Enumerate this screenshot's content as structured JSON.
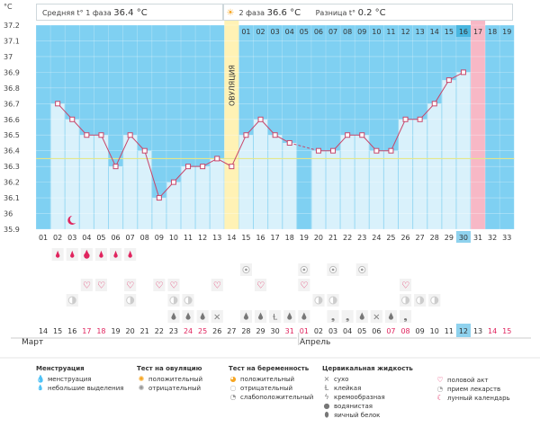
{
  "summary": {
    "phase1_label": "Средняя t° 1 фаза",
    "phase1_value": "36.4 °C",
    "phase2_label": "2 фаза",
    "phase2_value": "36.6 °C",
    "diff_label": "Разница t°",
    "diff_value": "0.2 °C"
  },
  "chart_data": {
    "type": "line",
    "title": "",
    "y_unit": "°C",
    "ylim": [
      35.9,
      37.2
    ],
    "yticks": [
      "35.9",
      "36",
      "36.1",
      "36.2",
      "36.3",
      "36.4",
      "36.5",
      "36.6",
      "36.7",
      "36.8",
      "36.9",
      "37",
      "37.1",
      "37.2"
    ],
    "cycle_days": [
      "01",
      "02",
      "03",
      "04",
      "05",
      "06",
      "07",
      "08",
      "09",
      "10",
      "11",
      "12",
      "13",
      "14",
      "15",
      "16",
      "17",
      "18",
      "19",
      "20",
      "21",
      "22",
      "23",
      "24",
      "25",
      "26",
      "27",
      "28",
      "29",
      "30",
      "31",
      "32",
      "33"
    ],
    "top_days": [
      "01",
      "02",
      "03",
      "04",
      "05",
      "06",
      "07",
      "08",
      "09",
      "10",
      "11",
      "12",
      "13",
      "14",
      "15",
      "16",
      "17",
      "18",
      "19"
    ],
    "dates": [
      "14",
      "15",
      "16",
      "17",
      "18",
      "19",
      "20",
      "21",
      "22",
      "23",
      "24",
      "25",
      "26",
      "27",
      "28",
      "29",
      "30",
      "31",
      "01",
      "02",
      "03",
      "04",
      "05",
      "06",
      "07",
      "08",
      "09",
      "10",
      "11",
      "12",
      "13",
      "14",
      "15"
    ],
    "weekend_dates": [
      3,
      4,
      10,
      11,
      17,
      18,
      24,
      25,
      31,
      32
    ],
    "months": [
      "Март",
      "Апрель"
    ],
    "temperatures": [
      null,
      36.7,
      36.6,
      36.5,
      36.5,
      36.3,
      36.5,
      36.4,
      36.1,
      36.2,
      36.3,
      36.3,
      36.35,
      36.3,
      36.5,
      36.6,
      36.5,
      36.45,
      null,
      36.4,
      36.4,
      36.5,
      36.5,
      36.4,
      36.4,
      36.6,
      36.6,
      36.7,
      36.85,
      36.9,
      null,
      null,
      null
    ],
    "gap_segment": [
      17,
      19
    ],
    "ovulation_day": 14,
    "ovulation_label": "ОВУЛЯЦИЯ",
    "period_expected_day": 31,
    "today_day": 30,
    "coverline": 36.35,
    "moon_day": 3,
    "rows": {
      "menstruation": [
        null,
        "sm",
        "sm",
        "big",
        "sm",
        "sm",
        "sm",
        null,
        null,
        null,
        null,
        null,
        null,
        null,
        null,
        null,
        null,
        null,
        null,
        null,
        null,
        null,
        null,
        null,
        null,
        null,
        null,
        null,
        null,
        null,
        null,
        null,
        null
      ],
      "ovulation_test": [
        null,
        null,
        null,
        null,
        null,
        null,
        null,
        null,
        null,
        null,
        null,
        null,
        null,
        null,
        "neg",
        null,
        null,
        null,
        null,
        null,
        null,
        null,
        "neg",
        null,
        null,
        null,
        null,
        null,
        null,
        null,
        null,
        null,
        null
      ],
      "pregnancy_test": [
        null,
        null,
        null,
        null,
        null,
        null,
        null,
        null,
        null,
        null,
        null,
        null,
        null,
        null,
        null,
        null,
        null,
        null,
        "neg",
        null,
        "neg",
        null,
        null,
        null,
        null,
        null,
        null,
        null,
        null,
        null,
        null,
        null,
        null
      ],
      "sex": [
        null,
        null,
        null,
        "sex",
        "sex",
        null,
        "sex",
        null,
        "sex",
        "sex",
        null,
        null,
        "sex",
        null,
        null,
        "sex",
        null,
        null,
        "sex",
        null,
        null,
        null,
        null,
        null,
        null,
        "sex",
        null,
        null,
        null,
        null,
        null,
        null,
        null
      ],
      "pills": [
        null,
        null,
        "pill",
        null,
        null,
        null,
        "pill",
        null,
        null,
        "pill",
        "pill",
        null,
        null,
        null,
        null,
        null,
        null,
        null,
        null,
        "pill",
        "pill",
        null,
        null,
        null,
        null,
        "pill",
        "pill",
        "pill",
        null,
        null,
        null,
        null,
        null
      ],
      "mucus": [
        null,
        null,
        null,
        null,
        null,
        null,
        null,
        null,
        null,
        "drop",
        "drop",
        "drop",
        "x",
        null,
        "drop",
        "drop",
        "sticky",
        "drop",
        "drop",
        null,
        "egg",
        "egg",
        "drop",
        "x",
        "drop",
        "egg",
        null,
        null,
        null,
        null,
        null,
        null,
        null
      ]
    }
  },
  "legend": {
    "groups": [
      {
        "title": "Менструация",
        "items": [
          {
            "icon": "drop-big-icon",
            "label": "менструация"
          },
          {
            "icon": "drop-small-icon",
            "label": "небольшие выделения"
          }
        ]
      },
      {
        "title": "Тест на овуляцию",
        "items": [
          {
            "icon": "test-positive-icon",
            "label": "положительный"
          },
          {
            "icon": "test-negative-icon",
            "label": "отрицательный"
          }
        ]
      },
      {
        "title": "Тест на беременность",
        "items": [
          {
            "icon": "preg-positive-icon",
            "label": "положительный"
          },
          {
            "icon": "preg-negative-icon",
            "label": "отрицательный"
          },
          {
            "icon": "preg-weak-icon",
            "label": "слабоположительный"
          }
        ]
      },
      {
        "title": "Цервикальная жидкость",
        "items": [
          {
            "icon": "dry-icon",
            "label": "сухо"
          },
          {
            "icon": "sticky-icon",
            "label": "клейкая"
          },
          {
            "icon": "creamy-icon",
            "label": "кремообразная"
          },
          {
            "icon": "watery-icon",
            "label": "водянистая"
          },
          {
            "icon": "eggwhite-icon",
            "label": "яичный белок"
          }
        ]
      },
      {
        "title": "",
        "items": [
          {
            "icon": "heart-icon",
            "label": "половой акт"
          },
          {
            "icon": "pill-icon",
            "label": "прием лекарств"
          },
          {
            "icon": "moon-icon",
            "label": "лунный календарь"
          }
        ]
      }
    ]
  },
  "colors": {
    "sky": "#7fd0f2",
    "bar": "#d9f1fb",
    "ovulation": "#fff2b5",
    "period": "#f7b8c6",
    "line": "#c8466a",
    "weekend": "#e0245e",
    "today": "#8fd2ee"
  }
}
